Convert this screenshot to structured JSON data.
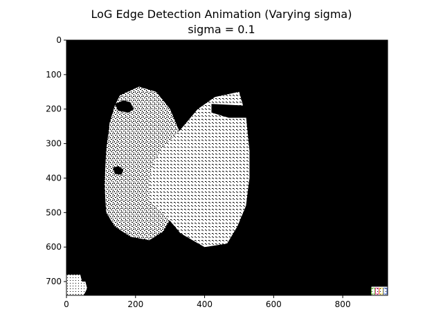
{
  "chart_data": {
    "type": "image",
    "title": "LoG Edge Detection Animation (Varying sigma)",
    "subtitle": "sigma = 0.1",
    "xlabel": "",
    "ylabel": "",
    "xlim": [
      0,
      930
    ],
    "ylim": [
      740,
      0
    ],
    "x_ticks": [
      0,
      200,
      400,
      600,
      800
    ],
    "y_ticks": [
      0,
      100,
      200,
      300,
      400,
      500,
      600,
      700
    ],
    "background_color": "#000000",
    "foreground_color": "#ffffff",
    "regions": [
      {
        "name": "left-blob",
        "outline": [
          [
            155,
            160
          ],
          [
            210,
            135
          ],
          [
            260,
            150
          ],
          [
            300,
            200
          ],
          [
            325,
            260
          ],
          [
            325,
            370
          ],
          [
            320,
            470
          ],
          [
            300,
            520
          ],
          [
            280,
            555
          ],
          [
            240,
            580
          ],
          [
            185,
            570
          ],
          [
            140,
            540
          ],
          [
            115,
            500
          ],
          [
            110,
            420
          ],
          [
            115,
            320
          ],
          [
            125,
            240
          ],
          [
            140,
            190
          ]
        ]
      },
      {
        "name": "right-blob",
        "outline": [
          [
            430,
            165
          ],
          [
            500,
            150
          ],
          [
            520,
            220
          ],
          [
            530,
            320
          ],
          [
            530,
            400
          ],
          [
            520,
            480
          ],
          [
            495,
            540
          ],
          [
            465,
            590
          ],
          [
            400,
            600
          ],
          [
            330,
            560
          ],
          [
            280,
            500
          ],
          [
            240,
            470
          ],
          [
            240,
            400
          ],
          [
            255,
            350
          ],
          [
            280,
            310
          ],
          [
            330,
            260
          ],
          [
            380,
            200
          ]
        ]
      },
      {
        "name": "left-blob-dark-spot-top",
        "outline": [
          [
            140,
            185
          ],
          [
            165,
            175
          ],
          [
            185,
            180
          ],
          [
            195,
            200
          ],
          [
            180,
            210
          ],
          [
            150,
            205
          ]
        ]
      },
      {
        "name": "left-blob-dark-spot-mid",
        "outline": [
          [
            135,
            370
          ],
          [
            150,
            365
          ],
          [
            165,
            375
          ],
          [
            160,
            390
          ],
          [
            140,
            388
          ]
        ]
      },
      {
        "name": "right-blob-dark-band",
        "outline": [
          [
            420,
            185
          ],
          [
            520,
            190
          ],
          [
            575,
            205
          ],
          [
            560,
            225
          ],
          [
            470,
            225
          ],
          [
            420,
            210
          ]
        ]
      }
    ],
    "artifacts": [
      {
        "name": "bottom-left-patch",
        "outline": [
          [
            0,
            680
          ],
          [
            40,
            680
          ],
          [
            45,
            700
          ],
          [
            55,
            700
          ],
          [
            60,
            720
          ],
          [
            50,
            740
          ],
          [
            0,
            740
          ]
        ]
      },
      {
        "name": "bottom-right-patch",
        "outline": [
          [
            883,
            715
          ],
          [
            930,
            715
          ],
          [
            930,
            740
          ],
          [
            883,
            740
          ]
        ],
        "colors": [
          "#6fbf3f",
          "#e83a8c",
          "#f0d040",
          "#4a6fd0"
        ]
      }
    ]
  }
}
